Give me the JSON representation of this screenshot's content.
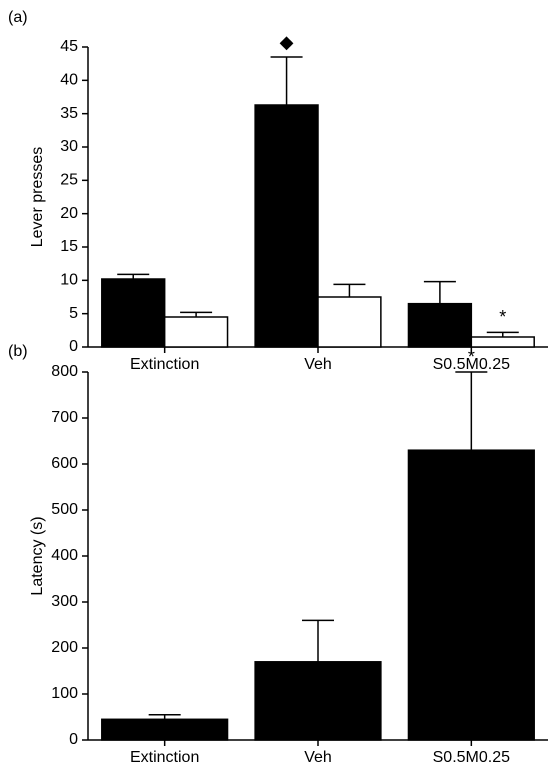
{
  "chart_data": [
    {
      "type": "bar",
      "panel_label": "(a)",
      "ylabel": "Lever presses",
      "categories": [
        "Extinction",
        "Veh",
        "S0.5M0.25"
      ],
      "series": [
        {
          "color": "#000000",
          "values": [
            10.2,
            36.3,
            6.5
          ],
          "errors": [
            0.7,
            7.2,
            3.3
          ]
        },
        {
          "color": "#ffffff",
          "values": [
            4.5,
            7.5,
            1.5
          ],
          "errors": [
            0.7,
            1.9,
            0.7
          ]
        }
      ],
      "annotations": [
        "◆",
        "*"
      ],
      "ylim": [
        0,
        45
      ],
      "yticks": [
        0,
        5,
        10,
        15,
        20,
        25,
        30,
        35,
        40,
        45
      ]
    },
    {
      "type": "bar",
      "panel_label": "(b)",
      "ylabel": "Latency (s)",
      "categories": [
        "Extinction",
        "Veh",
        "S0.5M0.25"
      ],
      "series": [
        {
          "color": "#000000",
          "values": [
            45,
            170,
            630
          ],
          "errors": [
            10,
            90,
            170
          ]
        }
      ],
      "annotations": [
        "*"
      ],
      "ylim": [
        0,
        800
      ],
      "yticks": [
        0,
        100,
        200,
        300,
        400,
        500,
        600,
        700,
        800
      ]
    }
  ]
}
